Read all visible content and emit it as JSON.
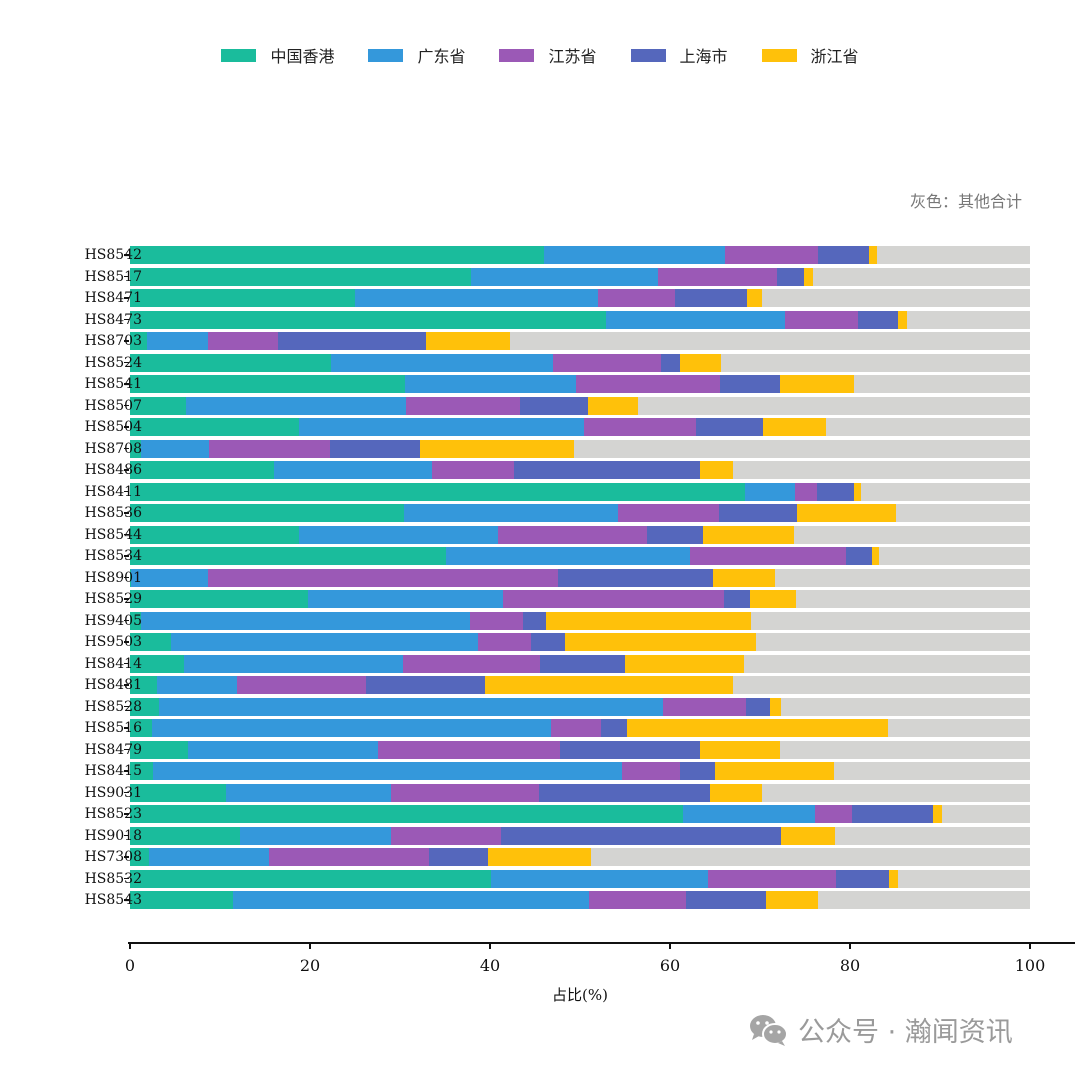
{
  "legend": [
    {
      "label": "中国香港",
      "color": "#1ABC9C"
    },
    {
      "label": "广东省",
      "color": "#3498DB"
    },
    {
      "label": "江苏省",
      "color": "#9B59B6"
    },
    {
      "label": "上海市",
      "color": "#5567BC"
    },
    {
      "label": "浙江省",
      "color": "#FFC10A"
    }
  ],
  "note": "灰色：其他合计",
  "other_color": "#D4D4D2",
  "watermark": {
    "text": "公众号 · 瀚闻资讯",
    "icon": "wechat-icon"
  },
  "chart_data": {
    "type": "bar",
    "orientation": "horizontal",
    "stacked": true,
    "title": "",
    "xlabel": "占比(%)",
    "ylabel": "",
    "xlim": [
      0,
      100
    ],
    "xticks": [
      0,
      20,
      40,
      60,
      80,
      100
    ],
    "grid": false,
    "legend_position": "top",
    "annotation": "灰色：其他合计",
    "categories": [
      "HS8542",
      "HS8517",
      "HS8471",
      "HS8473",
      "HS8703",
      "HS8524",
      "HS8541",
      "HS8507",
      "HS8504",
      "HS8708",
      "HS8486",
      "HS8411",
      "HS8536",
      "HS8544",
      "HS8534",
      "HS8901",
      "HS8529",
      "HS9405",
      "HS9503",
      "HS8414",
      "HS8481",
      "HS8528",
      "HS8516",
      "HS8479",
      "HS8415",
      "HS9031",
      "HS8523",
      "HS9018",
      "HS7308",
      "HS8532",
      "HS8543"
    ],
    "series": [
      {
        "name": "中国香港",
        "color": "#1ABC9C",
        "values": [
          46.0,
          37.9,
          25.0,
          52.9,
          1.9,
          22.3,
          30.6,
          6.2,
          18.8,
          1.2,
          16.0,
          68.3,
          30.4,
          18.8,
          35.1,
          0.1,
          19.8,
          1.2,
          4.6,
          6.0,
          3.0,
          3.2,
          2.4,
          6.4,
          2.6,
          10.7,
          61.4,
          12.2,
          2.1,
          40.1,
          11.4
        ]
      },
      {
        "name": "广东省",
        "color": "#3498DB",
        "values": [
          20.1,
          20.8,
          27.0,
          19.9,
          6.8,
          24.7,
          19.0,
          24.5,
          31.6,
          7.6,
          17.6,
          5.6,
          23.8,
          22.1,
          27.1,
          8.6,
          21.6,
          36.6,
          34.1,
          24.3,
          8.9,
          56.0,
          44.4,
          21.2,
          52.1,
          18.3,
          14.7,
          16.8,
          13.3,
          24.1,
          39.6
        ]
      },
      {
        "name": "江苏省",
        "color": "#9B59B6",
        "values": [
          10.3,
          13.2,
          8.6,
          8.1,
          7.7,
          12.0,
          16.0,
          12.6,
          12.5,
          13.4,
          9.1,
          2.4,
          11.2,
          16.5,
          17.4,
          38.9,
          24.6,
          5.9,
          5.9,
          15.3,
          14.3,
          9.2,
          5.5,
          20.2,
          6.4,
          16.4,
          4.1,
          12.2,
          17.8,
          14.2,
          10.8
        ]
      },
      {
        "name": "上海市",
        "color": "#5567BC",
        "values": [
          5.7,
          3.0,
          8.0,
          4.4,
          16.5,
          2.1,
          6.6,
          7.6,
          7.4,
          10.0,
          20.6,
          4.1,
          8.7,
          6.3,
          2.8,
          17.2,
          2.9,
          2.5,
          3.7,
          9.4,
          13.2,
          2.7,
          2.9,
          15.5,
          3.9,
          19.0,
          9.0,
          31.1,
          6.6,
          5.9,
          8.9
        ]
      },
      {
        "name": "浙江省",
        "color": "#FFC10A",
        "values": [
          0.9,
          1.0,
          1.6,
          1.0,
          9.3,
          4.6,
          8.2,
          5.5,
          7.0,
          17.1,
          3.7,
          0.8,
          11.0,
          10.1,
          0.8,
          6.9,
          5.1,
          22.8,
          21.3,
          13.2,
          27.6,
          1.2,
          29.0,
          8.9,
          13.2,
          5.8,
          1.0,
          6.0,
          11.4,
          1.0,
          5.7
        ]
      },
      {
        "name": "其他合计",
        "color": "#D4D4D2",
        "values": [
          17.0,
          24.1,
          29.8,
          13.7,
          57.8,
          34.3,
          19.6,
          43.6,
          22.7,
          50.7,
          33.0,
          18.8,
          14.9,
          26.2,
          16.8,
          28.3,
          26.0,
          31.0,
          30.4,
          31.8,
          33.0,
          27.7,
          15.8,
          27.8,
          21.8,
          29.8,
          9.8,
          21.7,
          48.8,
          14.7,
          23.6
        ]
      }
    ]
  }
}
